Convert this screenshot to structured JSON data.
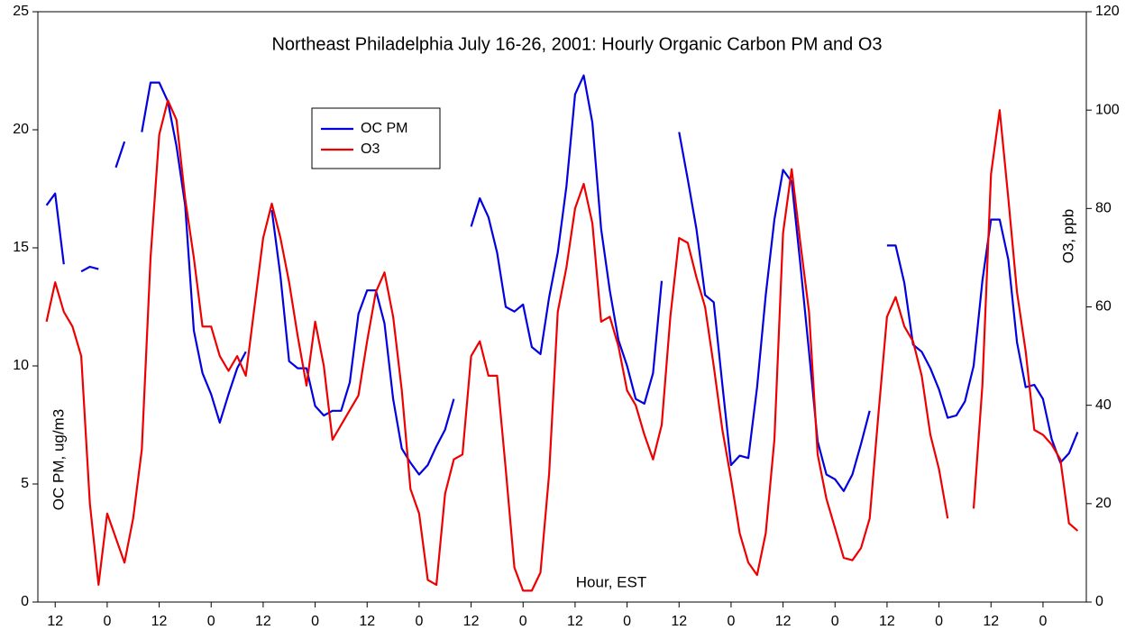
{
  "chart_data": {
    "type": "line",
    "title": "Northeast Philadelphia July 16-26, 2001: Hourly Organic Carbon PM and O3",
    "x_label": "Hour, EST",
    "y_label": "OC PM, ug/m3",
    "y2_label": "O3, ppb",
    "xlim": [
      -4,
      238
    ],
    "xticks": [
      {
        "value": 0,
        "label": "12"
      },
      {
        "value": 12,
        "label": "0"
      },
      {
        "value": 24,
        "label": "12"
      },
      {
        "value": 36,
        "label": "0"
      },
      {
        "value": 48,
        "label": "12"
      },
      {
        "value": 60,
        "label": "0"
      },
      {
        "value": 72,
        "label": "12"
      },
      {
        "value": 84,
        "label": "0"
      },
      {
        "value": 96,
        "label": "12"
      },
      {
        "value": 108,
        "label": "0"
      },
      {
        "value": 120,
        "label": "12"
      },
      {
        "value": 132,
        "label": "0"
      },
      {
        "value": 144,
        "label": "12"
      },
      {
        "value": 156,
        "label": "0"
      },
      {
        "value": 168,
        "label": "12"
      },
      {
        "value": 180,
        "label": "0"
      },
      {
        "value": 192,
        "label": "12"
      },
      {
        "value": 204,
        "label": "0"
      },
      {
        "value": 216,
        "label": "12"
      },
      {
        "value": 228,
        "label": "0"
      }
    ],
    "ylim": [
      0,
      25
    ],
    "yticks": [
      0,
      5,
      10,
      15,
      20,
      25
    ],
    "y2lim": [
      0,
      120
    ],
    "y2ticks": [
      0,
      20,
      40,
      60,
      80,
      100,
      120
    ],
    "legend": "upper-left",
    "x": [
      -2,
      0,
      2,
      4,
      6,
      8,
      10,
      12,
      14,
      16,
      18,
      20,
      22,
      24,
      26,
      28,
      30,
      32,
      34,
      36,
      38,
      40,
      42,
      44,
      46,
      48,
      50,
      52,
      54,
      56,
      58,
      60,
      62,
      64,
      66,
      68,
      70,
      72,
      74,
      76,
      78,
      80,
      82,
      84,
      86,
      88,
      90,
      92,
      94,
      96,
      98,
      100,
      102,
      104,
      106,
      108,
      110,
      112,
      114,
      116,
      118,
      120,
      122,
      124,
      126,
      128,
      130,
      132,
      134,
      136,
      138,
      140,
      142,
      144,
      146,
      148,
      150,
      152,
      154,
      156,
      158,
      160,
      162,
      164,
      166,
      168,
      170,
      172,
      174,
      176,
      178,
      180,
      182,
      184,
      186,
      188,
      190,
      192,
      194,
      196,
      198,
      200,
      202,
      204,
      206,
      208,
      210,
      212,
      214,
      216,
      218,
      220,
      222,
      224,
      226,
      228,
      230,
      232,
      234,
      236
    ],
    "series": [
      {
        "name": "OC PM",
        "color": "#0000e0",
        "axis": "y",
        "values": [
          16.8,
          17.3,
          14.3,
          null,
          14.0,
          14.2,
          14.1,
          null,
          18.4,
          19.5,
          null,
          19.9,
          22.0,
          22.0,
          21.2,
          19.3,
          16.8,
          11.5,
          9.7,
          8.8,
          7.6,
          8.8,
          9.9,
          10.6,
          null,
          null,
          16.6,
          13.8,
          10.2,
          9.9,
          9.9,
          8.3,
          7.9,
          8.1,
          8.1,
          9.3,
          12.2,
          13.2,
          13.2,
          11.8,
          8.6,
          6.5,
          5.9,
          5.4,
          5.8,
          6.6,
          7.3,
          8.6,
          null,
          15.9,
          17.1,
          16.3,
          14.8,
          12.5,
          12.3,
          12.6,
          10.8,
          10.5,
          12.9,
          14.8,
          17.6,
          21.5,
          22.3,
          20.3,
          15.8,
          13.2,
          11.1,
          10.0,
          8.6,
          8.4,
          9.7,
          13.6,
          null,
          19.9,
          17.9,
          15.8,
          13.0,
          12.7,
          9.2,
          5.8,
          6.2,
          6.1,
          9.1,
          13.0,
          16.2,
          18.3,
          17.8,
          14.3,
          10.6,
          6.8,
          5.4,
          5.2,
          4.7,
          5.4,
          6.7,
          8.1,
          null,
          15.1,
          15.1,
          13.5,
          10.9,
          10.6,
          9.9,
          9.0,
          7.8,
          7.9,
          8.5,
          10.0,
          13.6,
          16.2,
          16.2,
          14.5,
          11.0,
          9.1,
          9.2,
          8.6,
          6.9,
          5.9,
          6.3,
          7.2
        ]
      },
      {
        "name": "O3",
        "color": "#ee0000",
        "axis": "y2",
        "values": [
          57,
          65,
          59,
          56,
          50,
          20,
          3.5,
          18,
          13,
          8,
          17,
          31,
          70,
          95,
          102,
          98,
          82,
          70,
          56,
          56,
          50,
          47,
          50,
          46,
          60,
          74,
          81,
          74,
          65,
          54,
          44,
          57,
          48,
          33,
          36,
          39,
          42,
          53,
          63,
          67,
          58,
          43,
          23,
          18,
          4.5,
          3.5,
          22,
          29,
          30,
          50,
          53,
          46,
          46,
          27,
          7,
          2.3,
          2.3,
          6,
          26,
          59,
          68,
          80,
          85,
          77,
          57,
          58,
          52,
          43,
          40,
          34,
          29,
          36,
          58,
          74,
          73,
          66,
          60,
          48,
          35,
          25,
          14,
          8,
          5.5,
          14,
          33,
          75,
          88,
          73,
          59,
          30,
          21,
          15,
          9,
          8.5,
          11,
          17,
          38,
          58,
          62,
          56,
          53,
          46,
          34,
          27,
          17,
          null,
          null,
          19,
          44,
          87,
          100,
          82,
          63,
          51,
          35,
          34,
          32,
          29,
          16,
          14.5
        ]
      }
    ]
  }
}
